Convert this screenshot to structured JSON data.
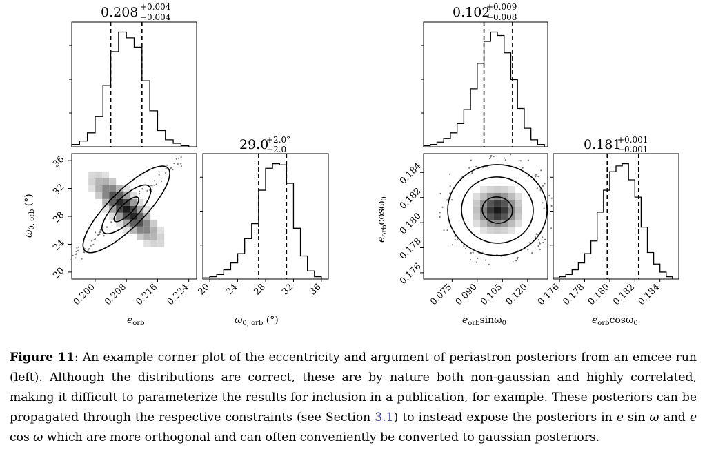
{
  "figure": {
    "left_panel": {
      "title_top": {
        "value": "0.208",
        "plus": "+0.004",
        "minus": "−0.004"
      },
      "title_mid": {
        "value": "29.0",
        "plus": "+2.0°",
        "minus": "−2.0"
      },
      "x_label_1": "e",
      "x_label_1_sub": "orb",
      "x_label_2": "ω",
      "x_label_2_sub": "0, orb",
      "x_label_2_unit": " (°)",
      "y_label": "ω",
      "y_label_sub": "0, orb",
      "y_label_unit": " (°)"
    },
    "right_panel": {
      "title_top": {
        "value": "0.102",
        "plus": "+0.009",
        "minus": "−0.008"
      },
      "title_mid": {
        "value": "0.181",
        "plus": "+0.001",
        "minus": "−0.001"
      },
      "x_label_1": "e",
      "x_label_1_sub": "orb",
      "x_label_1_rest": "sinω",
      "x_label_1_sub2": "0",
      "x_label_2": "e",
      "x_label_2_sub": "orb",
      "x_label_2_rest": "cosω",
      "x_label_2_sub2": "0",
      "y_label": "e",
      "y_label_sub": "orb",
      "y_label_rest": "cosω",
      "y_label_sub2": "0"
    }
  },
  "chart_data": [
    {
      "type": "histogram",
      "panel": "left-top",
      "xlim": [
        0.194,
        0.226
      ],
      "median": 0.208,
      "quantiles": [
        0.204,
        0.212
      ],
      "bins": [
        0.194,
        0.196,
        0.198,
        0.2,
        0.202,
        0.204,
        0.206,
        0.208,
        0.21,
        0.212,
        0.214,
        0.216,
        0.218,
        0.22,
        0.222,
        0.224
      ],
      "heights": [
        0.02,
        0.05,
        0.12,
        0.26,
        0.53,
        0.82,
        0.99,
        0.94,
        0.86,
        0.57,
        0.31,
        0.14,
        0.06,
        0.03,
        0.01
      ]
    },
    {
      "type": "2d-histogram-contour",
      "panel": "left-bottom",
      "x_label": "e_orb",
      "y_label": "ω_0,orb (°)",
      "xlim": [
        0.194,
        0.226
      ],
      "ylim": [
        19,
        37
      ],
      "x_ticks": [
        "0.200",
        "0.208",
        "0.216",
        "0.224"
      ],
      "x_tick_values": [
        0.2,
        0.208,
        0.216,
        0.224
      ],
      "y_ticks": [
        "20",
        "24",
        "28",
        "32",
        "36"
      ],
      "y_tick_values": [
        20,
        24,
        28,
        32,
        36
      ],
      "center": [
        0.208,
        29.0
      ],
      "correlation": "strong positive"
    },
    {
      "type": "histogram",
      "panel": "left-mid",
      "xlim": [
        19,
        37
      ],
      "median": 29.0,
      "quantiles": [
        27.0,
        31.0
      ],
      "x_ticks": [
        "20",
        "24",
        "28",
        "32",
        "36"
      ],
      "x_tick_values": [
        20,
        24,
        28,
        32,
        36
      ],
      "bins": [
        19,
        20,
        21,
        22,
        23,
        24,
        25,
        26,
        27,
        28,
        29,
        30,
        31,
        32,
        33,
        34,
        35,
        36
      ],
      "heights": [
        0.01,
        0.02,
        0.04,
        0.08,
        0.14,
        0.22,
        0.35,
        0.48,
        0.77,
        0.96,
        1.0,
        0.99,
        0.83,
        0.44,
        0.2,
        0.07,
        0.02
      ]
    },
    {
      "type": "histogram",
      "panel": "right-top",
      "xlim": [
        0.058,
        0.132
      ],
      "median": 0.102,
      "quantiles": [
        0.094,
        0.111
      ],
      "bins": [
        0.058,
        0.062,
        0.066,
        0.07,
        0.074,
        0.078,
        0.082,
        0.086,
        0.09,
        0.094,
        0.098,
        0.102,
        0.106,
        0.11,
        0.114,
        0.118,
        0.122,
        0.126,
        0.13
      ],
      "heights": [
        0.01,
        0.02,
        0.04,
        0.07,
        0.12,
        0.2,
        0.32,
        0.5,
        0.72,
        0.91,
        0.99,
        0.96,
        0.81,
        0.58,
        0.33,
        0.16,
        0.06,
        0.02
      ]
    },
    {
      "type": "2d-histogram-contour",
      "panel": "right-bottom",
      "x_label": "e_orb sinω_0",
      "y_label": "e_orb cosω_0",
      "xlim": [
        0.058,
        0.132
      ],
      "ylim": [
        0.1755,
        0.1855
      ],
      "x_ticks": [
        "0.075",
        "0.090",
        "0.105",
        "0.120"
      ],
      "x_tick_values": [
        0.075,
        0.09,
        0.105,
        0.12
      ],
      "y_ticks": [
        "0.176",
        "0.178",
        "0.180",
        "0.182",
        "0.184"
      ],
      "y_tick_values": [
        0.176,
        0.178,
        0.18,
        0.182,
        0.184
      ],
      "center": [
        0.102,
        0.181
      ],
      "correlation": "weak"
    },
    {
      "type": "histogram",
      "panel": "right-mid",
      "xlim": [
        0.1755,
        0.1855
      ],
      "median": 0.181,
      "quantiles": [
        0.1798,
        0.1823
      ],
      "x_ticks": [
        "0.176",
        "0.178",
        "0.180",
        "0.182",
        "0.184"
      ],
      "x_tick_values": [
        0.176,
        0.178,
        0.18,
        0.182,
        0.184
      ],
      "bins": [
        0.1755,
        0.176,
        0.1765,
        0.177,
        0.1775,
        0.178,
        0.1785,
        0.179,
        0.1795,
        0.18,
        0.1805,
        0.181,
        0.1815,
        0.182,
        0.1825,
        0.183,
        0.1835,
        0.184,
        0.1845,
        0.185
      ],
      "heights": [
        0.01,
        0.02,
        0.04,
        0.08,
        0.14,
        0.22,
        0.33,
        0.58,
        0.77,
        0.93,
        0.98,
        1.0,
        0.86,
        0.71,
        0.45,
        0.23,
        0.13,
        0.06,
        0.02
      ]
    }
  ],
  "caption": {
    "label": "Figure 11",
    "sep": ": ",
    "text1": "An example corner plot of the eccentricity and argument of periastron posteriors from an emcee run (left). Although the distributions are correct, these are by nature both non-gaussian and highly correlated, making it difficult to parameterize the results for inclusion in a publication, for example. These posteriors can be propagated through the respective constraints (see Section ",
    "ref": "3.1",
    "text2": ") to instead expose the posteriors in ",
    "math1": "e",
    "math1b": " sin ",
    "math1c": "ω",
    "text3": " and ",
    "math2": "e",
    "math2b": " cos ",
    "math2c": "ω",
    "text4": " which are more orthogonal and can often conveniently be converted to gaussian posteriors."
  }
}
